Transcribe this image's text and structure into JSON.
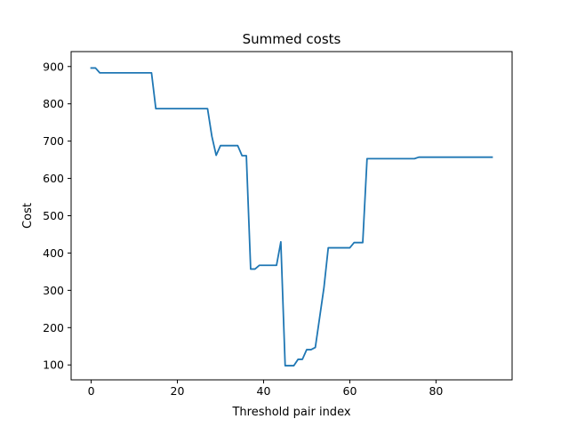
{
  "chart_data": {
    "type": "line",
    "title": "Summed costs",
    "xlabel": "Threshold pair index",
    "ylabel": "Cost",
    "xlim": [
      -4.65,
      97.65
    ],
    "ylim": [
      60,
      940
    ],
    "x_ticks": [
      0,
      20,
      40,
      60,
      80
    ],
    "y_ticks": [
      100,
      200,
      300,
      400,
      500,
      600,
      700,
      800,
      900
    ],
    "x_tick_labels": [
      "0",
      "20",
      "40",
      "60",
      "80"
    ],
    "y_tick_labels": [
      "100",
      "200",
      "300",
      "400",
      "500",
      "600",
      "700",
      "800",
      "900"
    ],
    "grid": false,
    "legend": "none",
    "series": [
      {
        "color": "#1f77b4",
        "points": [
          [
            0,
            896
          ],
          [
            1,
            896
          ],
          [
            2,
            883
          ],
          [
            3,
            883
          ],
          [
            4,
            883
          ],
          [
            5,
            883
          ],
          [
            6,
            883
          ],
          [
            7,
            883
          ],
          [
            8,
            883
          ],
          [
            9,
            883
          ],
          [
            10,
            883
          ],
          [
            11,
            883
          ],
          [
            12,
            883
          ],
          [
            13,
            883
          ],
          [
            14,
            883
          ],
          [
            15,
            787
          ],
          [
            16,
            787
          ],
          [
            17,
            787
          ],
          [
            18,
            787
          ],
          [
            19,
            787
          ],
          [
            20,
            787
          ],
          [
            21,
            787
          ],
          [
            22,
            787
          ],
          [
            23,
            787
          ],
          [
            24,
            787
          ],
          [
            25,
            787
          ],
          [
            26,
            787
          ],
          [
            27,
            787
          ],
          [
            28,
            713
          ],
          [
            29,
            662
          ],
          [
            30,
            688
          ],
          [
            31,
            688
          ],
          [
            32,
            688
          ],
          [
            33,
            688
          ],
          [
            34,
            688
          ],
          [
            35,
            661
          ],
          [
            36,
            661
          ],
          [
            37,
            357
          ],
          [
            38,
            357
          ],
          [
            39,
            367
          ],
          [
            40,
            367
          ],
          [
            41,
            367
          ],
          [
            42,
            367
          ],
          [
            43,
            367
          ],
          [
            44,
            430
          ],
          [
            45,
            98
          ],
          [
            46,
            98
          ],
          [
            47,
            98
          ],
          [
            48,
            115
          ],
          [
            49,
            115
          ],
          [
            50,
            141
          ],
          [
            51,
            141
          ],
          [
            52,
            147
          ],
          [
            53,
            227
          ],
          [
            54,
            307
          ],
          [
            55,
            414
          ],
          [
            56,
            414
          ],
          [
            57,
            414
          ],
          [
            58,
            414
          ],
          [
            59,
            414
          ],
          [
            60,
            414
          ],
          [
            61,
            428
          ],
          [
            62,
            428
          ],
          [
            63,
            428
          ],
          [
            64,
            653
          ],
          [
            65,
            653
          ],
          [
            66,
            653
          ],
          [
            67,
            653
          ],
          [
            68,
            653
          ],
          [
            69,
            653
          ],
          [
            70,
            653
          ],
          [
            71,
            653
          ],
          [
            72,
            653
          ],
          [
            73,
            653
          ],
          [
            74,
            653
          ],
          [
            75,
            653
          ],
          [
            76,
            657
          ],
          [
            77,
            657
          ],
          [
            78,
            657
          ],
          [
            79,
            657
          ],
          [
            80,
            657
          ],
          [
            81,
            657
          ],
          [
            82,
            657
          ],
          [
            83,
            657
          ],
          [
            84,
            657
          ],
          [
            85,
            657
          ],
          [
            86,
            657
          ],
          [
            87,
            657
          ],
          [
            88,
            657
          ],
          [
            89,
            657
          ],
          [
            90,
            657
          ],
          [
            91,
            657
          ],
          [
            92,
            657
          ],
          [
            93,
            657
          ]
        ]
      }
    ]
  }
}
